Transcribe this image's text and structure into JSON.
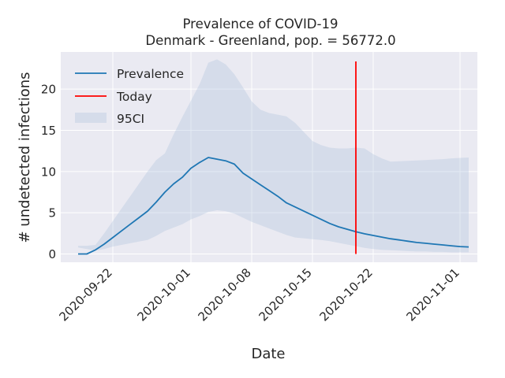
{
  "chart_data": {
    "type": "line",
    "title": "Prevalence of COVID-19",
    "subtitle": "Denmark - Greenland, pop. = 56772.0",
    "xlabel": "Date",
    "ylabel": "# undetected infections",
    "x_ticks": [
      "2020-09-22",
      "2020-10-01",
      "2020-10-08",
      "2020-10-15",
      "2020-10-22",
      "2020-11-01"
    ],
    "y_ticks": [
      0,
      5,
      10,
      15,
      20
    ],
    "ylim": [
      -1,
      24.5
    ],
    "xlim": [
      "2020-09-16",
      "2020-11-03"
    ],
    "grid": true,
    "legend_position": "top-left",
    "legend": [
      "Prevalence",
      "Today",
      "95CI"
    ],
    "today": "2020-10-20",
    "series": [
      {
        "name": "Prevalence",
        "color": "#1f77b4",
        "x": [
          "2020-09-18",
          "2020-09-19",
          "2020-09-20",
          "2020-09-21",
          "2020-09-22",
          "2020-09-23",
          "2020-09-24",
          "2020-09-25",
          "2020-09-26",
          "2020-09-27",
          "2020-09-28",
          "2020-09-29",
          "2020-09-30",
          "2020-10-01",
          "2020-10-02",
          "2020-10-03",
          "2020-10-04",
          "2020-10-05",
          "2020-10-06",
          "2020-10-07",
          "2020-10-08",
          "2020-10-09",
          "2020-10-10",
          "2020-10-11",
          "2020-10-12",
          "2020-10-13",
          "2020-10-14",
          "2020-10-15",
          "2020-10-16",
          "2020-10-17",
          "2020-10-18",
          "2020-10-19",
          "2020-10-20",
          "2020-10-21",
          "2020-10-22",
          "2020-10-23",
          "2020-10-24",
          "2020-10-25",
          "2020-10-26",
          "2020-10-27",
          "2020-10-28",
          "2020-10-29",
          "2020-10-30",
          "2020-10-31",
          "2020-11-01",
          "2020-11-02"
        ],
        "values": [
          0.0,
          0.0,
          0.5,
          1.2,
          2.0,
          2.8,
          3.6,
          4.4,
          5.2,
          6.3,
          7.5,
          8.5,
          9.3,
          10.4,
          11.1,
          11.7,
          11.5,
          11.3,
          10.9,
          9.8,
          9.1,
          8.4,
          7.7,
          7.0,
          6.2,
          5.7,
          5.2,
          4.7,
          4.2,
          3.7,
          3.3,
          3.0,
          2.7,
          2.45,
          2.25,
          2.05,
          1.85,
          1.7,
          1.55,
          1.4,
          1.3,
          1.2,
          1.1,
          1.0,
          0.9,
          0.85
        ]
      }
    ],
    "ci95": {
      "name": "95CI",
      "color": "#b0c4de",
      "x": [
        "2020-09-18",
        "2020-09-19",
        "2020-09-20",
        "2020-09-21",
        "2020-09-22",
        "2020-09-23",
        "2020-09-24",
        "2020-09-25",
        "2020-09-26",
        "2020-09-27",
        "2020-09-28",
        "2020-09-29",
        "2020-09-30",
        "2020-10-01",
        "2020-10-02",
        "2020-10-03",
        "2020-10-04",
        "2020-10-05",
        "2020-10-06",
        "2020-10-07",
        "2020-10-08",
        "2020-10-09",
        "2020-10-10",
        "2020-10-11",
        "2020-10-12",
        "2020-10-13",
        "2020-10-14",
        "2020-10-15",
        "2020-10-16",
        "2020-10-17",
        "2020-10-18",
        "2020-10-19",
        "2020-10-20",
        "2020-10-21",
        "2020-10-22",
        "2020-10-23",
        "2020-10-24",
        "2020-10-25",
        "2020-10-26",
        "2020-10-27",
        "2020-10-28",
        "2020-10-29",
        "2020-10-30",
        "2020-10-31",
        "2020-11-01",
        "2020-11-02"
      ],
      "lower": [
        0.8,
        0.6,
        0.4,
        0.6,
        0.9,
        1.1,
        1.3,
        1.5,
        1.7,
        2.2,
        2.8,
        3.2,
        3.6,
        4.2,
        4.6,
        5.1,
        5.3,
        5.2,
        4.9,
        4.4,
        3.9,
        3.5,
        3.1,
        2.7,
        2.3,
        2.0,
        1.9,
        1.8,
        1.7,
        1.55,
        1.35,
        1.15,
        0.95,
        0.75,
        0.6,
        0.5,
        0.45,
        0.4,
        0.35,
        0.3,
        0.3,
        0.25,
        0.25,
        0.2,
        0.2,
        0.2
      ],
      "upper": [
        1.0,
        1.0,
        1.1,
        2.5,
        4.0,
        5.5,
        7.0,
        8.5,
        10.0,
        11.4,
        12.2,
        14.5,
        16.6,
        18.6,
        20.6,
        23.2,
        23.6,
        23.0,
        21.8,
        20.2,
        18.5,
        17.5,
        17.1,
        16.9,
        16.7,
        15.9,
        14.8,
        13.7,
        13.2,
        12.9,
        12.8,
        12.8,
        12.9,
        12.8,
        12.1,
        11.6,
        11.2,
        11.25,
        11.3,
        11.35,
        11.4,
        11.45,
        11.5,
        11.6,
        11.65,
        11.7
      ]
    }
  }
}
